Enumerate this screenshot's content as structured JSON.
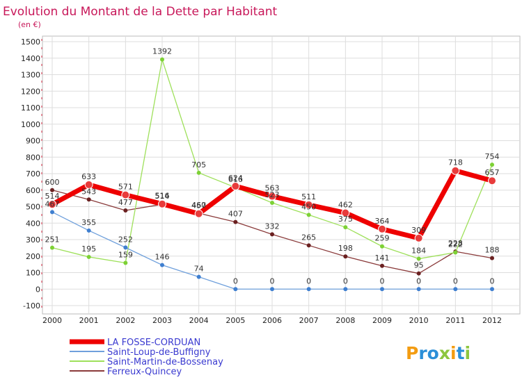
{
  "brand": {
    "letters": [
      "P",
      "r",
      "o",
      "x",
      "i",
      "t",
      "i"
    ],
    "colors": [
      "#f39c12",
      "#2b8fd8",
      "#2b8fd8",
      "#8dc63f",
      "#f39c12",
      "#2b8fd8",
      "#8dc63f"
    ]
  },
  "chart_data": {
    "type": "line",
    "title": "Evolution du Montant de la Dette par Habitant",
    "subtitle": "(en €)",
    "xlabel": "",
    "ylabel": "",
    "categories": [
      "2000",
      "2001",
      "2002",
      "2003",
      "2004",
      "2005",
      "2006",
      "2007",
      "2008",
      "2009",
      "2010",
      "2011",
      "2012"
    ],
    "ylim": [
      -100,
      1500
    ],
    "yticks": [
      -100,
      0,
      100,
      200,
      300,
      400,
      500,
      600,
      700,
      800,
      900,
      1000,
      1100,
      1200,
      1300,
      1400,
      1500
    ],
    "grid": true,
    "legend_position": "bottom-left",
    "series": [
      {
        "name": "LA FOSSE-CORDUAN",
        "color": "#ee0000",
        "marker": "#e83c3c",
        "width": 7,
        "values": [
          514,
          633,
          571,
          516,
          457,
          624,
          563,
          511,
          462,
          364,
          309,
          718,
          657
        ],
        "labels": [
          "514",
          "633",
          "571",
          "516",
          "457",
          "624",
          "563",
          "511",
          "462",
          "364",
          "309",
          "718",
          "657"
        ]
      },
      {
        "name": "Saint-Loup-de-Buffigny",
        "color": "#6fa0dc",
        "marker": "#3f7fd0",
        "width": 1.3,
        "values": [
          467,
          355,
          252,
          146,
          74,
          0,
          0,
          0,
          0,
          0,
          0,
          0,
          0
        ],
        "labels": [
          "467",
          "355",
          "252",
          "146",
          "74",
          "0",
          "0",
          "0",
          "0",
          "0",
          "0",
          "0",
          "0"
        ]
      },
      {
        "name": "Saint-Martin-de-Bossenay",
        "color": "#9ee05a",
        "marker": "#7dd135",
        "width": 1.3,
        "values": [
          251,
          195,
          159,
          1392,
          705,
          616,
          523,
          450,
          375,
          259,
          184,
          222,
          754
        ],
        "labels": [
          "251",
          "195",
          "159",
          "1392",
          "705",
          "616",
          "523",
          "450",
          "375",
          "259",
          "184",
          "222",
          "754"
        ]
      },
      {
        "name": "Ferreux-Quincey",
        "color": "#8a3a3a",
        "marker": "#6a2020",
        "width": 1.3,
        "values": [
          600,
          543,
          477,
          514,
          460,
          407,
          332,
          265,
          198,
          141,
          95,
          228,
          188
        ],
        "labels": [
          "600",
          "543",
          "477",
          "514",
          "460",
          "407",
          "332",
          "265",
          "198",
          "141",
          "95",
          "228",
          "188"
        ]
      }
    ]
  }
}
